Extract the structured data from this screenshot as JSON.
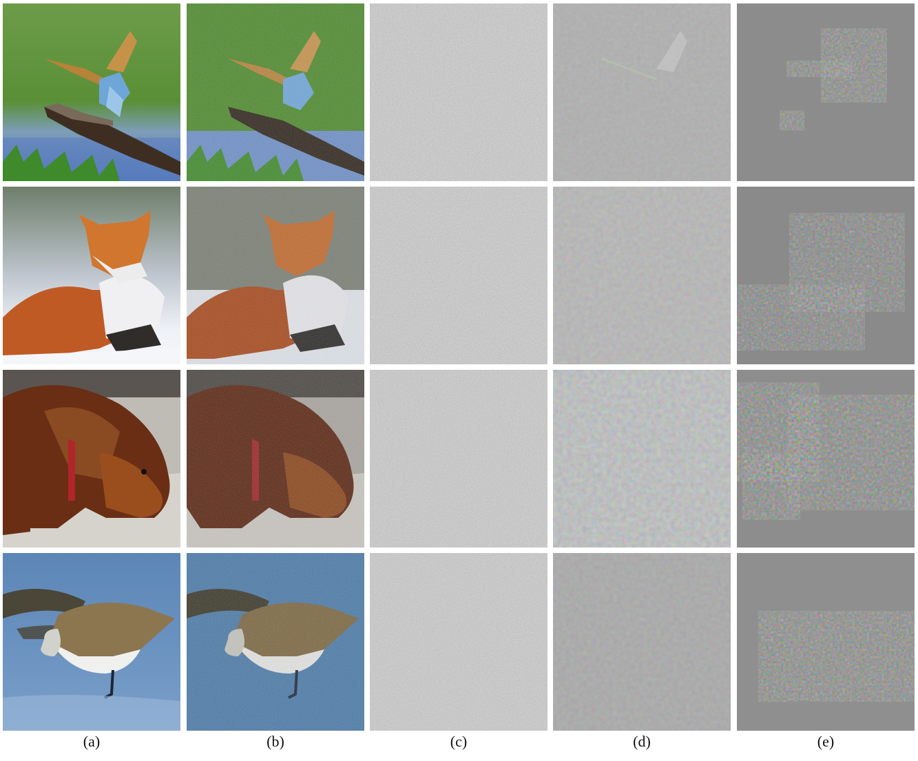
{
  "figure": {
    "columns": [
      {
        "id": "a",
        "caption": "(a)",
        "kind": "original"
      },
      {
        "id": "b",
        "caption": "(b)",
        "kind": "noisy"
      },
      {
        "id": "c",
        "caption": "(c)",
        "kind": "perturbation-fine"
      },
      {
        "id": "d",
        "caption": "(d)",
        "kind": "perturbation-medium"
      },
      {
        "id": "e",
        "caption": "(e)",
        "kind": "perturbation-coarse"
      }
    ],
    "rows": [
      {
        "subject": "bee-eater bird on branch"
      },
      {
        "subject": "red fox in snow"
      },
      {
        "subject": "long-haired dachshund lying down"
      },
      {
        "subject": "sandpiper wading in water"
      }
    ],
    "colors": {
      "gray_bg": "#8e8e8e",
      "grass": "#4e8a32",
      "water": "#6f8fbf",
      "fox_orange": "#c8642a",
      "dog_brown": "#6a2e14",
      "snow": "#e9edf3"
    }
  }
}
